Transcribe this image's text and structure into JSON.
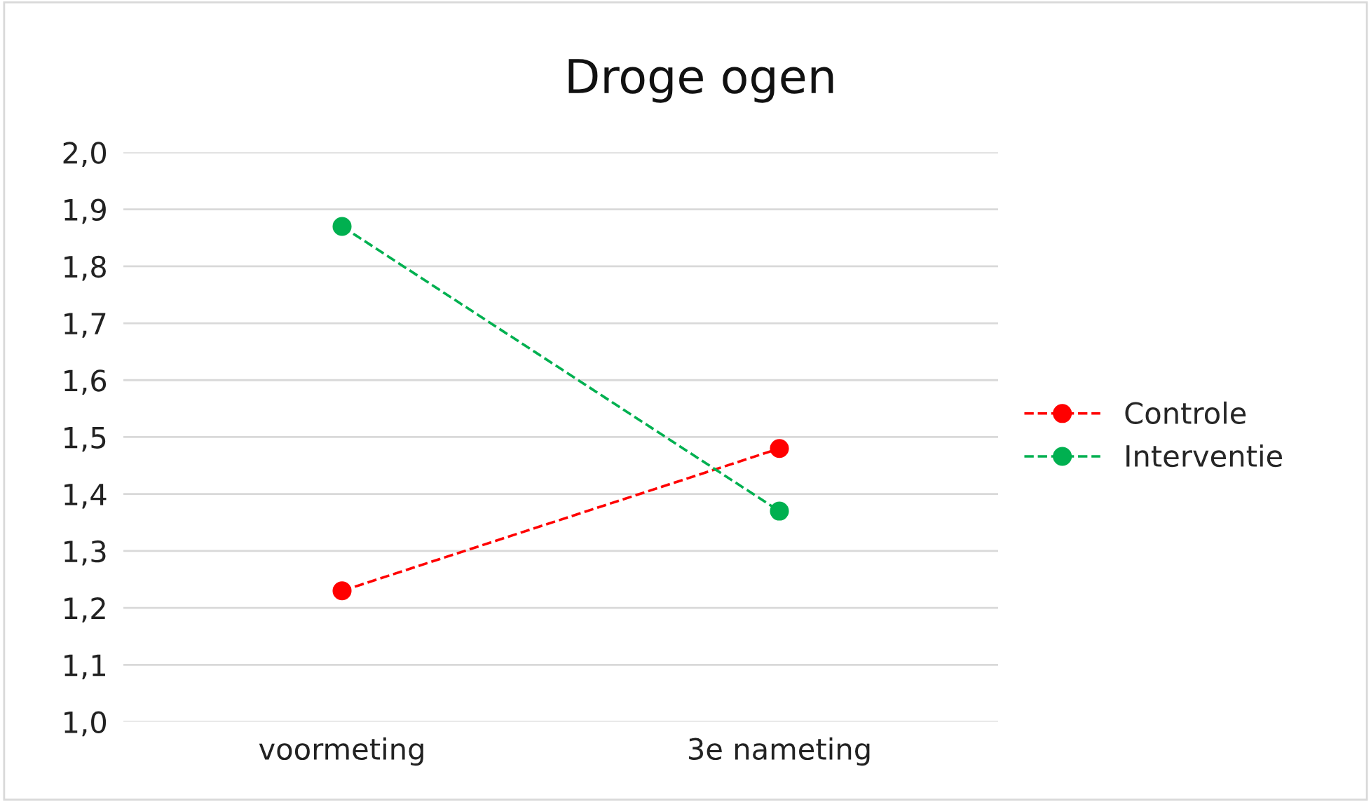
{
  "chart_data": {
    "type": "line",
    "title": "Droge ogen",
    "categories": [
      "voormeting",
      "3e nameting"
    ],
    "series": [
      {
        "name": "Controle",
        "color": "#ff0000",
        "values": [
          1.23,
          1.48
        ]
      },
      {
        "name": "Interventie",
        "color": "#00b050",
        "values": [
          1.87,
          1.37
        ]
      }
    ],
    "ylim": [
      1.0,
      2.0
    ],
    "yticks": [
      {
        "value": 1.0,
        "label": "1,0"
      },
      {
        "value": 1.1,
        "label": "1,1"
      },
      {
        "value": 1.2,
        "label": "1,2"
      },
      {
        "value": 1.3,
        "label": "1,3"
      },
      {
        "value": 1.4,
        "label": "1,4"
      },
      {
        "value": 1.5,
        "label": "1,5"
      },
      {
        "value": 1.6,
        "label": "1,6"
      },
      {
        "value": 1.7,
        "label": "1,7"
      },
      {
        "value": 1.8,
        "label": "1,8"
      },
      {
        "value": 1.9,
        "label": "1,9"
      },
      {
        "value": 2.0,
        "label": "2,0"
      }
    ],
    "grid": "y",
    "legend": "right",
    "marker": "circle",
    "line_style": "dashed"
  }
}
